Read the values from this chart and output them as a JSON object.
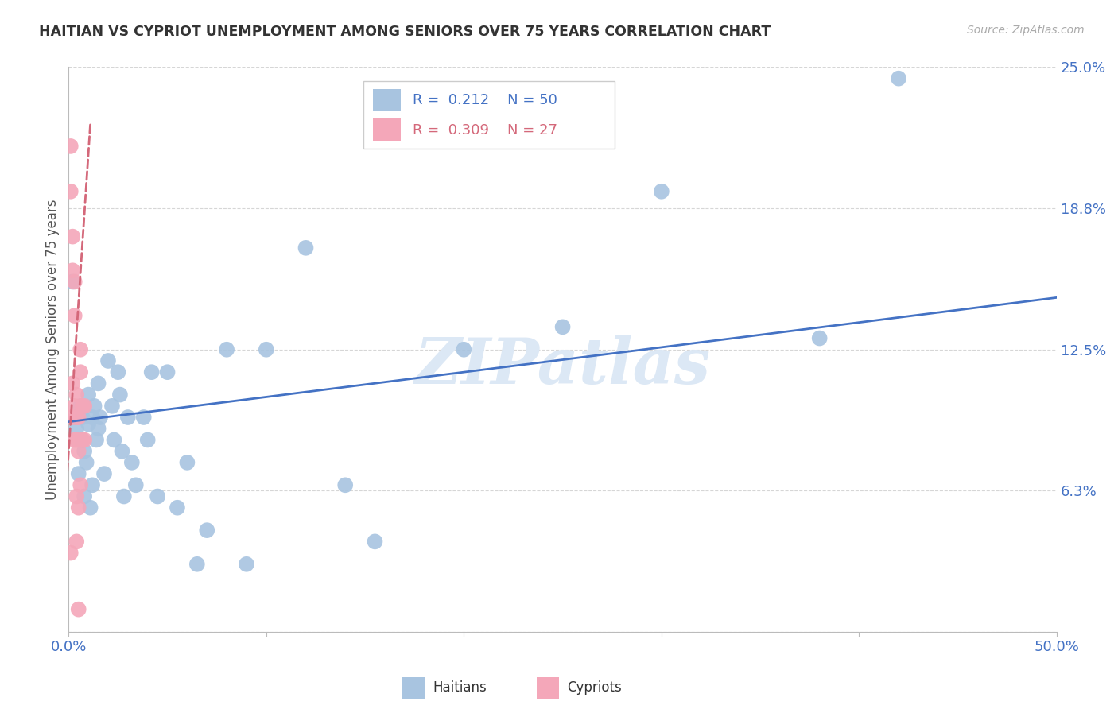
{
  "title": "HAITIAN VS CYPRIOT UNEMPLOYMENT AMONG SENIORS OVER 75 YEARS CORRELATION CHART",
  "source": "Source: ZipAtlas.com",
  "ylabel": "Unemployment Among Seniors over 75 years",
  "xlim": [
    0.0,
    0.5
  ],
  "ylim": [
    0.0,
    0.25
  ],
  "xticks": [
    0.0,
    0.1,
    0.2,
    0.3,
    0.4,
    0.5
  ],
  "xticklabels": [
    "0.0%",
    "",
    "",
    "",
    "",
    "50.0%"
  ],
  "ytick_positions": [
    0.0,
    0.0625,
    0.125,
    0.1875,
    0.25
  ],
  "ytick_labels": [
    "",
    "6.3%",
    "12.5%",
    "18.8%",
    "25.0%"
  ],
  "haitian_R": 0.212,
  "haitian_N": 50,
  "cypriot_R": 0.309,
  "cypriot_N": 27,
  "haitian_color": "#a8c4e0",
  "cypriot_color": "#f4a7b9",
  "haitian_line_color": "#4472c4",
  "cypriot_line_color": "#d4687a",
  "background_color": "#ffffff",
  "grid_color": "#cccccc",
  "haitian_x": [
    0.002,
    0.004,
    0.005,
    0.006,
    0.007,
    0.007,
    0.008,
    0.008,
    0.009,
    0.01,
    0.01,
    0.011,
    0.012,
    0.012,
    0.013,
    0.014,
    0.015,
    0.015,
    0.016,
    0.018,
    0.02,
    0.022,
    0.023,
    0.025,
    0.026,
    0.027,
    0.028,
    0.03,
    0.032,
    0.034,
    0.038,
    0.04,
    0.042,
    0.045,
    0.05,
    0.055,
    0.06,
    0.065,
    0.07,
    0.08,
    0.09,
    0.1,
    0.12,
    0.14,
    0.155,
    0.2,
    0.25,
    0.3,
    0.38,
    0.42
  ],
  "haitian_y": [
    0.155,
    0.09,
    0.07,
    0.1,
    0.085,
    0.095,
    0.06,
    0.08,
    0.075,
    0.092,
    0.105,
    0.055,
    0.065,
    0.095,
    0.1,
    0.085,
    0.09,
    0.11,
    0.095,
    0.07,
    0.12,
    0.1,
    0.085,
    0.115,
    0.105,
    0.08,
    0.06,
    0.095,
    0.075,
    0.065,
    0.095,
    0.085,
    0.115,
    0.06,
    0.115,
    0.055,
    0.075,
    0.03,
    0.045,
    0.125,
    0.03,
    0.125,
    0.17,
    0.065,
    0.04,
    0.125,
    0.135,
    0.195,
    0.13,
    0.245
  ],
  "cypriot_x": [
    0.001,
    0.001,
    0.001,
    0.002,
    0.002,
    0.002,
    0.002,
    0.003,
    0.003,
    0.003,
    0.003,
    0.004,
    0.004,
    0.004,
    0.004,
    0.004,
    0.005,
    0.005,
    0.005,
    0.005,
    0.006,
    0.006,
    0.006,
    0.007,
    0.007,
    0.008,
    0.008
  ],
  "cypriot_y": [
    0.215,
    0.195,
    0.035,
    0.175,
    0.16,
    0.11,
    0.095,
    0.155,
    0.14,
    0.1,
    0.085,
    0.105,
    0.095,
    0.085,
    0.06,
    0.04,
    0.095,
    0.08,
    0.055,
    0.01,
    0.125,
    0.115,
    0.065,
    0.1,
    0.085,
    0.1,
    0.085
  ],
  "haitian_trend_x0": 0.0,
  "haitian_trend_x1": 0.5,
  "haitian_trend_y0": 0.093,
  "haitian_trend_y1": 0.148,
  "cypriot_trend_x0": -0.003,
  "cypriot_trend_x1": 0.011,
  "cypriot_trend_y0": 0.04,
  "cypriot_trend_y1": 0.225,
  "watermark": "ZIPatlas",
  "legend_haitian_label": "R =  0.212    N = 50",
  "legend_cypriot_label": "R =  0.309    N = 27",
  "bottom_label_haitian": "Haitians",
  "bottom_label_cypriot": "Cypriots"
}
